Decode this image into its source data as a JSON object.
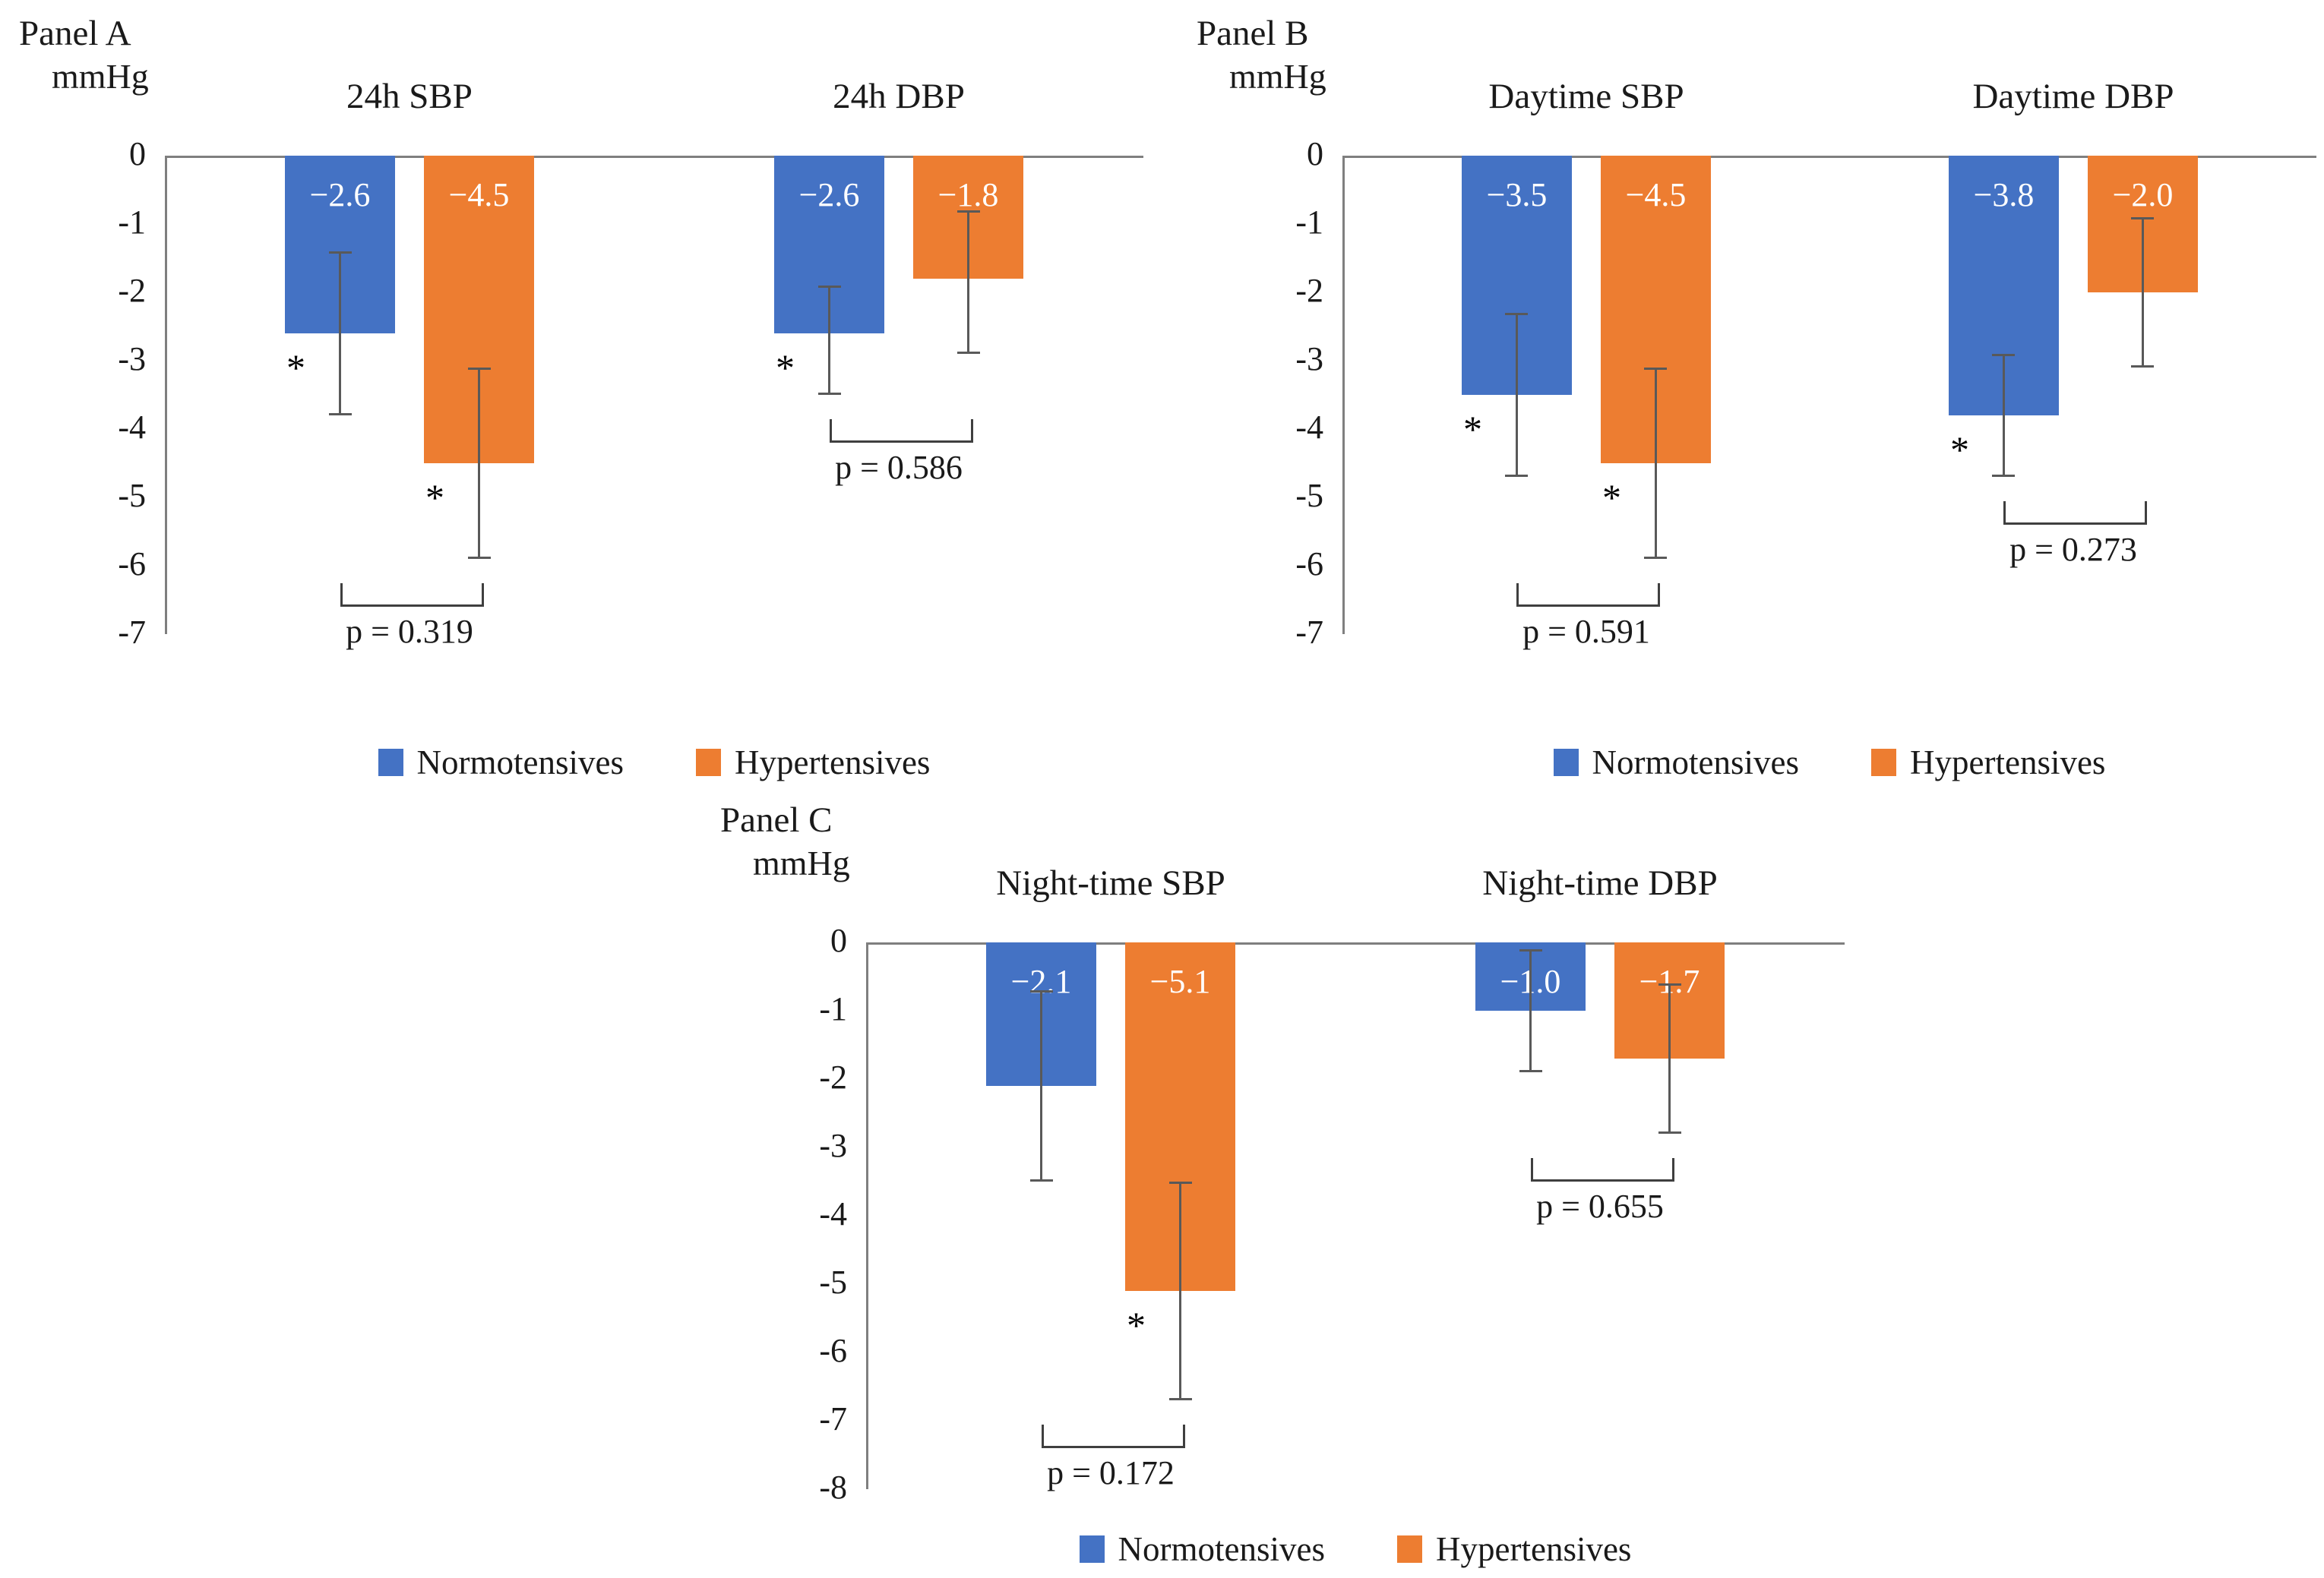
{
  "chart_data": {
    "type": "bar",
    "orientation": "vertical-negative",
    "units": "mmHg",
    "significance_marker": "*",
    "series_colors": {
      "Normotensives": "#4472C4",
      "Hypertensives": "#ED7D31"
    },
    "axis_color": "#7f7f7f",
    "error_bar_color": "#595959",
    "legend": {
      "entries": [
        "Normotensives",
        "Hypertensives"
      ],
      "position": "bottom"
    },
    "panels": [
      {
        "name": "Panel A",
        "axis_label": "mmHg",
        "ylim": [
          0,
          -7
        ],
        "yticks": [
          "0",
          "-1",
          "-2",
          "-3",
          "-4",
          "-5",
          "-6",
          "-7"
        ],
        "groups": [
          {
            "category": "24h SBP",
            "p_value_label": "p = 0.319",
            "bars": [
              {
                "series": "Normotensives",
                "value": -2.6,
                "value_label": "−2.6",
                "error_top": -1.4,
                "error_bottom": -3.8,
                "significant": true
              },
              {
                "series": "Hypertensives",
                "value": -4.5,
                "value_label": "−4.5",
                "error_top": -3.1,
                "error_bottom": -5.9,
                "significant": true
              }
            ]
          },
          {
            "category": "24h DBP",
            "p_value_label": "p = 0.586",
            "bars": [
              {
                "series": "Normotensives",
                "value": -2.6,
                "value_label": "−2.6",
                "error_top": -1.9,
                "error_bottom": -3.5,
                "significant": true
              },
              {
                "series": "Hypertensives",
                "value": -1.8,
                "value_label": "−1.8",
                "error_top": -0.8,
                "error_bottom": -2.9,
                "significant": false
              }
            ]
          }
        ]
      },
      {
        "name": "Panel B",
        "axis_label": "mmHg",
        "ylim": [
          0,
          -7
        ],
        "yticks": [
          "0",
          "-1",
          "-2",
          "-3",
          "-4",
          "-5",
          "-6",
          "-7"
        ],
        "groups": [
          {
            "category": "Daytime SBP",
            "p_value_label": "p = 0.591",
            "bars": [
              {
                "series": "Normotensives",
                "value": -3.5,
                "value_label": "−3.5",
                "error_top": -2.3,
                "error_bottom": -4.7,
                "significant": true
              },
              {
                "series": "Hypertensives",
                "value": -4.5,
                "value_label": "−4.5",
                "error_top": -3.1,
                "error_bottom": -5.9,
                "significant": true
              }
            ]
          },
          {
            "category": "Daytime DBP",
            "p_value_label": "p = 0.273",
            "bars": [
              {
                "series": "Normotensives",
                "value": -3.8,
                "value_label": "−3.8",
                "error_top": -2.9,
                "error_bottom": -4.7,
                "significant": true
              },
              {
                "series": "Hypertensives",
                "value": -2.0,
                "value_label": "−2.0",
                "error_top": -0.9,
                "error_bottom": -3.1,
                "significant": false
              }
            ]
          }
        ]
      },
      {
        "name": "Panel C",
        "axis_label": "mmHg",
        "ylim": [
          0,
          -8
        ],
        "yticks": [
          "0",
          "-1",
          "-2",
          "-3",
          "-4",
          "-5",
          "-6",
          "-7",
          "-8"
        ],
        "groups": [
          {
            "category": "Night-time SBP",
            "p_value_label": "p = 0.172",
            "bars": [
              {
                "series": "Normotensives",
                "value": -2.1,
                "value_label": "−2.1",
                "error_top": -0.7,
                "error_bottom": -3.5,
                "significant": false
              },
              {
                "series": "Hypertensives",
                "value": -5.1,
                "value_label": "−5.1",
                "error_top": -3.5,
                "error_bottom": -6.7,
                "significant": true
              }
            ]
          },
          {
            "category": "Night-time DBP",
            "p_value_label": "p = 0.655",
            "bars": [
              {
                "series": "Normotensives",
                "value": -1.0,
                "value_label": "−1.0",
                "error_top": -0.1,
                "error_bottom": -1.9,
                "significant": false
              },
              {
                "series": "Hypertensives",
                "value": -1.7,
                "value_label": "−1.7",
                "error_top": -0.6,
                "error_bottom": -2.8,
                "significant": false
              }
            ]
          }
        ]
      }
    ]
  }
}
